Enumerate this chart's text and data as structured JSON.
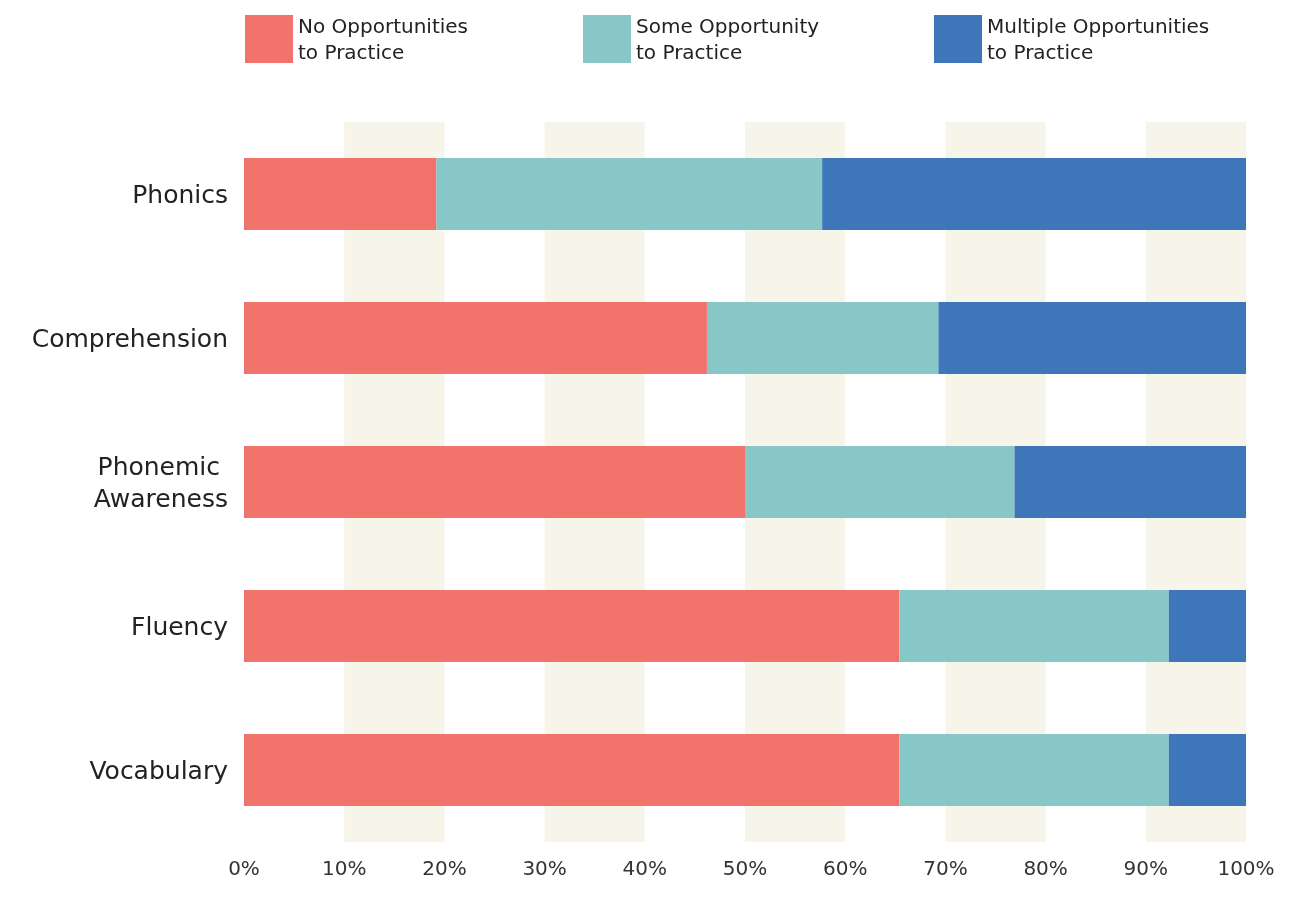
{
  "chart_data": {
    "type": "bar",
    "orientation": "horizontal",
    "stacked": true,
    "categories": [
      "Phonics",
      "Comprehension",
      "Phonemic Awareness",
      "Fluency",
      "Vocabulary"
    ],
    "series": [
      {
        "name": "No Opportunities\nto Practice",
        "color": "#f2736c",
        "values": [
          19.2,
          46.2,
          50,
          65.4,
          65.4
        ]
      },
      {
        "name": "Some Opportunity\nto Practice",
        "color": "#87c7c8",
        "values": [
          38.5,
          23.1,
          26.9,
          26.9,
          26.9
        ]
      },
      {
        "name": "Multiple Opportunities\nto Practice",
        "color": "#3e77b9",
        "values": [
          42.3,
          30.8,
          23.1,
          7.7,
          7.7
        ]
      }
    ],
    "xlim": [
      0,
      100
    ],
    "xticks": [
      {
        "value": 0,
        "label": "0%"
      },
      {
        "value": 10,
        "label": "10%"
      },
      {
        "value": 20,
        "label": "20%"
      },
      {
        "value": 30,
        "label": "30%"
      },
      {
        "value": 40,
        "label": "40%"
      },
      {
        "value": 50,
        "label": "50%"
      },
      {
        "value": 60,
        "label": "60%"
      },
      {
        "value": 70,
        "label": "70%"
      },
      {
        "value": 80,
        "label": "80%"
      },
      {
        "value": 90,
        "label": "90%"
      },
      {
        "value": 100,
        "label": "100%"
      }
    ],
    "bands": [
      {
        "axis": "x",
        "from": 10,
        "to": 20,
        "color": "#f7f4ea"
      },
      {
        "axis": "x",
        "from": 30,
        "to": 40,
        "color": "#f7f4ea"
      },
      {
        "axis": "x",
        "from": 50,
        "to": 60,
        "color": "#f7f4ea"
      },
      {
        "axis": "x",
        "from": 70,
        "to": 80,
        "color": "#f7f4ea"
      },
      {
        "axis": "x",
        "from": 90,
        "to": 100,
        "color": "#f7f4ea"
      }
    ],
    "grid": false,
    "legend": "top"
  }
}
